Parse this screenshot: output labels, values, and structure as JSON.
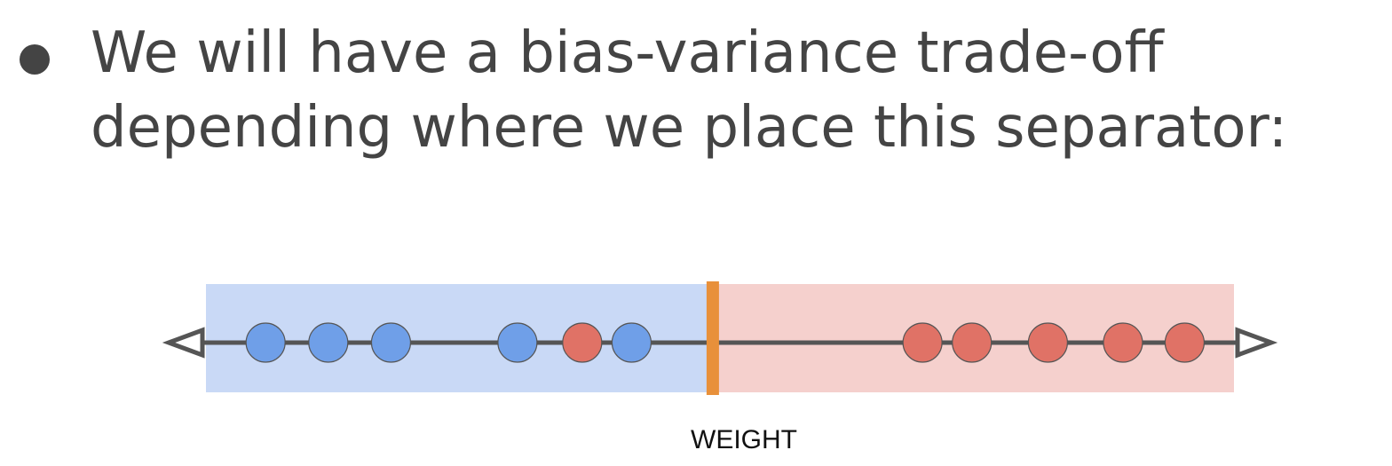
{
  "bullet": {
    "line1": "We will have a bias-variance trade-off",
    "line2": "depending where we place this separator:"
  },
  "diagram": {
    "axis_label": "WEIGHT",
    "domain": [
      0,
      100
    ],
    "left_region": {
      "range": [
        0,
        49.3
      ],
      "color": "#c9d9f6"
    },
    "right_region": {
      "range": [
        49.3,
        100
      ],
      "color": "#f5d0cd"
    },
    "separator": {
      "position": 49.3,
      "color": "#e8903a"
    },
    "axis_color": "#555555",
    "point_colors": {
      "blue": "#6f9fe8",
      "red": "#e07266"
    },
    "points": [
      {
        "x": 5.8,
        "class": "blue"
      },
      {
        "x": 11.9,
        "class": "blue"
      },
      {
        "x": 18.0,
        "class": "blue"
      },
      {
        "x": 30.3,
        "class": "blue"
      },
      {
        "x": 36.6,
        "class": "red"
      },
      {
        "x": 41.4,
        "class": "blue"
      },
      {
        "x": 69.7,
        "class": "red"
      },
      {
        "x": 74.5,
        "class": "red"
      },
      {
        "x": 81.9,
        "class": "red"
      },
      {
        "x": 89.2,
        "class": "red"
      },
      {
        "x": 95.2,
        "class": "red"
      }
    ]
  }
}
